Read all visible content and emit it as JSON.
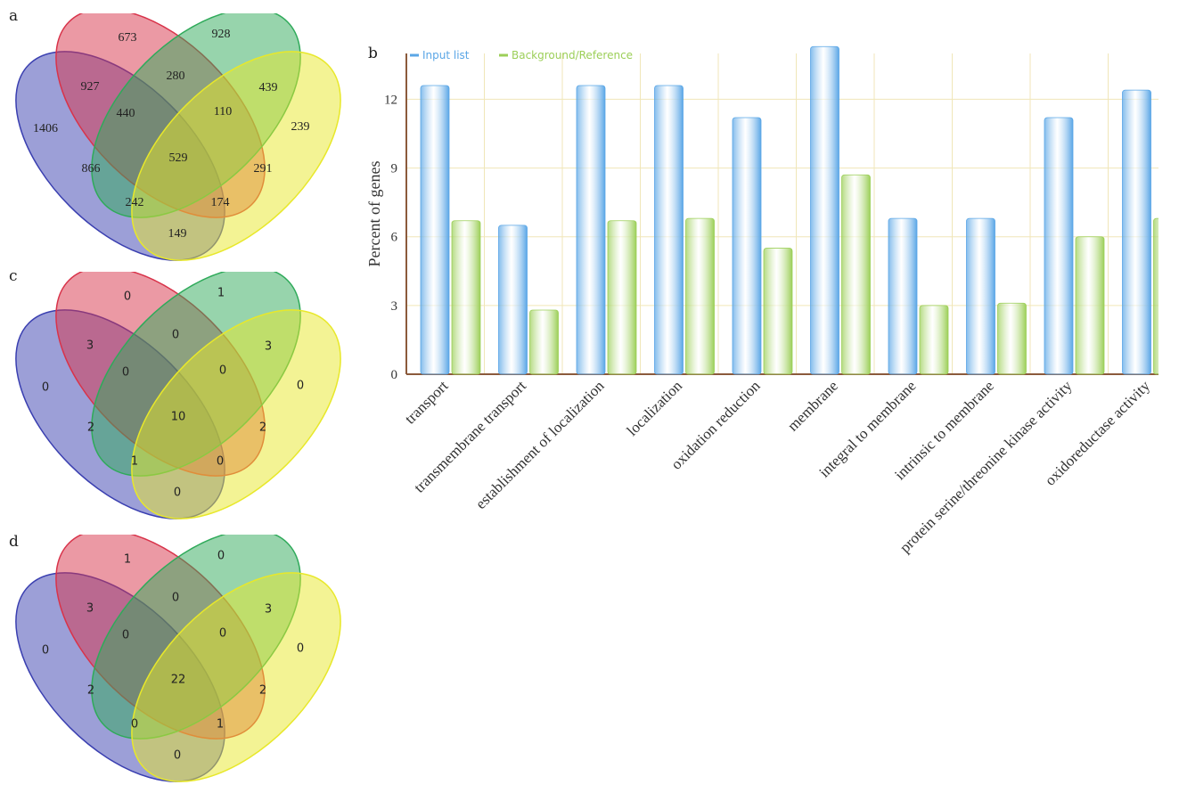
{
  "panels": {
    "a": "a",
    "b": "b",
    "c": "c",
    "d": "d"
  },
  "venn_a": {
    "regions": {
      "red_only": "673",
      "green_only": "928",
      "blue_only": "1406",
      "yellow_only": "239",
      "blue_red": "927",
      "red_green": "280",
      "green_yellow": "439",
      "blue_red_green": "440",
      "red_green_yellow": "110",
      "blue_green": "866",
      "all_four": "529",
      "red_yellow": "291",
      "blue_green_yellow": "242",
      "blue_red_yellow": "174",
      "blue_yellow": "149"
    }
  },
  "venn_c": {
    "regions": {
      "red_only": "0",
      "green_only": "1",
      "blue_only": "0",
      "yellow_only": "0",
      "blue_red": "3",
      "red_green": "0",
      "green_yellow": "3",
      "blue_red_green": "0",
      "red_green_yellow": "0",
      "blue_green": "2",
      "all_four": "10",
      "red_yellow": "2",
      "blue_green_yellow": "1",
      "blue_red_yellow": "0",
      "blue_yellow": "0"
    }
  },
  "venn_d": {
    "regions": {
      "red_only": "1",
      "green_only": "0",
      "blue_only": "0",
      "yellow_only": "0",
      "blue_red": "3",
      "red_green": "0",
      "green_yellow": "3",
      "blue_red_green": "0",
      "red_green_yellow": "0",
      "blue_green": "2",
      "all_four": "22",
      "red_yellow": "2",
      "blue_green_yellow": "0",
      "blue_red_yellow": "1",
      "blue_yellow": "0"
    }
  },
  "venn_colors": {
    "blue": "#3a3fb0",
    "red": "#d8334a",
    "green": "#2faa5a",
    "yellow": "#e8e82a"
  },
  "chart_data": {
    "type": "bar",
    "title": "",
    "xlabel": "",
    "ylabel": "Percent of genes",
    "ylim": [
      0,
      14
    ],
    "yticks": [
      0,
      3,
      6,
      9,
      12
    ],
    "grid": true,
    "legend_position": "top-left",
    "categories": [
      "transport",
      "transmembrane transport",
      "establishment of localization",
      "localization",
      "oxidation reduction",
      "membrane",
      "integral to membrane",
      "intrinsic to membrane",
      "protein serine/threonine kinase activity",
      "oxidoreductase activity"
    ],
    "series": [
      {
        "name": "Input list",
        "color": "#5aa6e6",
        "values": [
          12.6,
          6.5,
          12.6,
          12.6,
          11.2,
          14.3,
          6.8,
          6.8,
          11.2,
          12.4
        ]
      },
      {
        "name": "Background/Reference",
        "color": "#9ccf58",
        "values": [
          6.7,
          2.8,
          6.7,
          6.8,
          5.5,
          8.7,
          3.0,
          3.1,
          6.0,
          6.8
        ]
      }
    ]
  }
}
